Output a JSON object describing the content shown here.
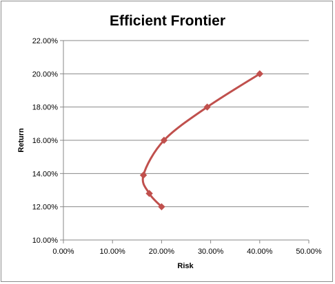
{
  "chart_data": {
    "type": "scatter",
    "title": "Efficient Frontier",
    "xlabel": "Risk",
    "ylabel": "Return",
    "xlim": [
      0,
      0.5
    ],
    "ylim": [
      0.1,
      0.22
    ],
    "x_ticks": [
      "0.00%",
      "10.00%",
      "20.00%",
      "30.00%",
      "40.00%",
      "50.00%"
    ],
    "y_ticks": [
      "10.00%",
      "12.00%",
      "14.00%",
      "16.00%",
      "18.00%",
      "20.00%",
      "22.00%"
    ],
    "grid": "horizontal",
    "legend": "none",
    "smooth_line": true,
    "color": "#c0504d",
    "points": [
      {
        "x": 0.2,
        "y": 0.12
      },
      {
        "x": 0.175,
        "y": 0.128
      },
      {
        "x": 0.163,
        "y": 0.139
      },
      {
        "x": 0.205,
        "y": 0.16
      },
      {
        "x": 0.293,
        "y": 0.18
      },
      {
        "x": 0.4,
        "y": 0.2
      }
    ]
  }
}
